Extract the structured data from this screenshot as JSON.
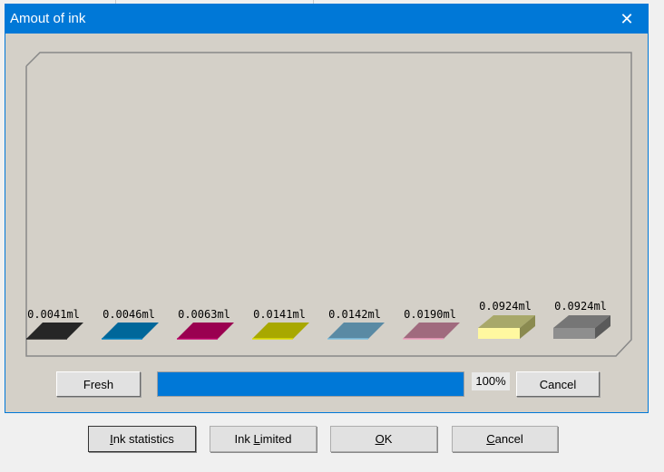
{
  "dialog": {
    "title": "Amout of ink",
    "close_icon": "close-icon"
  },
  "inks": [
    {
      "amount": "0.0041ml",
      "color": "#262626",
      "edge": "#262626",
      "style": "flat"
    },
    {
      "amount": "0.0046ml",
      "color": "#00679a",
      "edge": "#0080c0",
      "style": "flat"
    },
    {
      "amount": "0.0063ml",
      "color": "#9a0050",
      "edge": "#c0006a",
      "style": "flat"
    },
    {
      "amount": "0.0141ml",
      "color": "#a8a800",
      "edge": "#e0e000",
      "style": "flat"
    },
    {
      "amount": "0.0142ml",
      "color": "#5a8aa4",
      "edge": "#80c0e0",
      "style": "flat"
    },
    {
      "amount": "0.0190ml",
      "color": "#a06a7e",
      "edge": "#f0a0c0",
      "style": "flat"
    },
    {
      "amount": "0.0924ml",
      "color": "#a8a86a",
      "edge": "#fff8a0",
      "side": "#8a8a50",
      "style": "box"
    },
    {
      "amount": "0.0924ml",
      "color": "#767676",
      "edge": "#8e8e8e",
      "side": "#5a5a5a",
      "style": "box"
    }
  ],
  "controls": {
    "fresh": "Fresh",
    "progress_percent": 100,
    "progress_label": "100%",
    "cancel": "Cancel",
    "progress_color": "#0078d7"
  },
  "footer": {
    "ink_statistics": {
      "pre": "",
      "key": "I",
      "post": "nk statistics"
    },
    "ink_limited": {
      "pre": "Ink ",
      "key": "L",
      "post": "imited"
    },
    "ok": {
      "pre": "",
      "key": "O",
      "post": "K"
    },
    "cancel": {
      "pre": "",
      "key": "C",
      "post": "ancel"
    }
  }
}
